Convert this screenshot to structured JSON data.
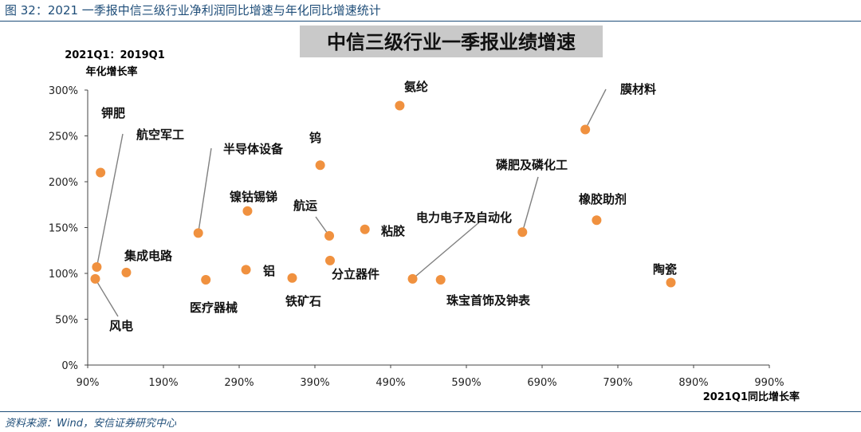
{
  "figure_title": "图 32：2021 一季报中信三级行业净利润同比增速与年化同比增速统计",
  "source": "资料来源：Wind，安信证券研究中心",
  "colors": {
    "accent": "#1f4e79",
    "marker": "#f0913f",
    "title_box": "#c9c9c9"
  },
  "chart_data": {
    "type": "scatter",
    "title": "中信三级行业一季报业绩增速",
    "xlabel": "2021Q1同比增长率",
    "ylabel_lines": [
      "2021Q1：2019Q1",
      "年化增长率"
    ],
    "xlim": [
      0.9,
      9.9
    ],
    "ylim": [
      0,
      3.0
    ],
    "x_ticks": [
      "90%",
      "190%",
      "290%",
      "390%",
      "490%",
      "590%",
      "690%",
      "790%",
      "890%",
      "990%"
    ],
    "y_ticks": [
      "0%",
      "50%",
      "100%",
      "150%",
      "200%",
      "250%",
      "300%"
    ],
    "grid": false,
    "points": [
      {
        "label": "钾肥",
        "x": 1.07,
        "y": 2.1
      },
      {
        "label": "航空军工",
        "x": 1.02,
        "y": 1.07
      },
      {
        "label": "风电",
        "x": 1.0,
        "y": 0.94
      },
      {
        "label": "集成电路",
        "x": 1.41,
        "y": 1.01
      },
      {
        "label": "半导体设备",
        "x": 2.36,
        "y": 1.44
      },
      {
        "label": "镍钴锡锑",
        "x": 3.01,
        "y": 1.68
      },
      {
        "label": "医疗器械",
        "x": 2.46,
        "y": 0.93
      },
      {
        "label": "铝",
        "x": 2.99,
        "y": 1.04
      },
      {
        "label": "钨",
        "x": 3.97,
        "y": 2.18
      },
      {
        "label": "航运",
        "x": 4.09,
        "y": 1.41
      },
      {
        "label": "铁矿石",
        "x": 3.6,
        "y": 0.95
      },
      {
        "label": "分立器件",
        "x": 4.1,
        "y": 1.14
      },
      {
        "label": "粘胶",
        "x": 4.56,
        "y": 1.48
      },
      {
        "label": "氨纶",
        "x": 5.02,
        "y": 2.83
      },
      {
        "label": "电力电子及自动化",
        "x": 5.19,
        "y": 0.94
      },
      {
        "label": "珠宝首饰及钟表",
        "x": 5.56,
        "y": 0.93
      },
      {
        "label": "磷肥及磷化工",
        "x": 6.64,
        "y": 1.45
      },
      {
        "label": "膜材料",
        "x": 7.47,
        "y": 2.57
      },
      {
        "label": "橡胶助剂",
        "x": 7.62,
        "y": 1.58
      },
      {
        "label": "陶瓷",
        "x": 8.6,
        "y": 0.9
      }
    ]
  }
}
